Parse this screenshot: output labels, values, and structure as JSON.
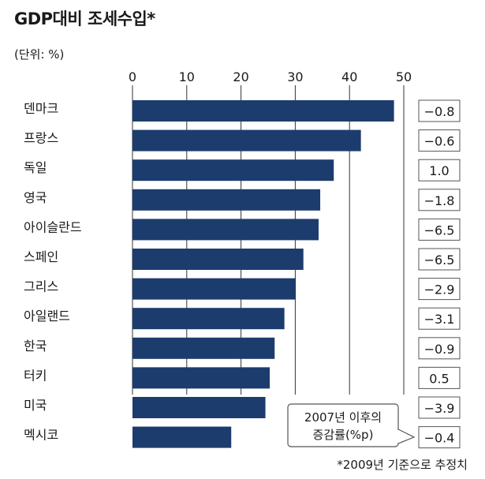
{
  "title": "GDP대비 조세수입*",
  "unit": "(단위: %)",
  "footnote": "*2009년 기준으로 추정치",
  "change_box_label_line1": "2007년 이후의",
  "change_box_label_line2": "증감률(%p)",
  "colors": {
    "bar": "#1d3c6e",
    "grid": "#333333",
    "box_border": "#555555"
  },
  "chart_data": {
    "type": "bar",
    "orientation": "horizontal",
    "title": "GDP대비 조세수입*",
    "unit_label": "(단위: %)",
    "xlim": [
      0,
      50
    ],
    "xticks": [
      0,
      10,
      20,
      30,
      40,
      50
    ],
    "grid": true,
    "categories": [
      "덴마크",
      "프랑스",
      "독일",
      "영국",
      "아이슬란드",
      "스페인",
      "그리스",
      "아일랜드",
      "한국",
      "터키",
      "미국",
      "멕시코"
    ],
    "values": [
      48.2,
      42.1,
      37.1,
      34.6,
      34.3,
      31.5,
      30.1,
      28.0,
      26.2,
      25.3,
      24.5,
      18.2
    ],
    "change_label": "2007년 이후의 증감률(%p)",
    "changes": [
      "−0.8",
      "−0.6",
      "1.0",
      "−1.8",
      "−6.5",
      "−6.5",
      "−2.9",
      "−3.1",
      "−0.9",
      "0.5",
      "−3.9",
      "−0.4"
    ]
  }
}
